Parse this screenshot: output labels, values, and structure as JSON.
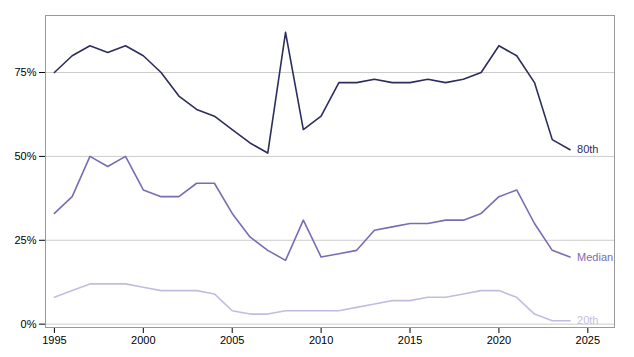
{
  "chart_data": {
    "type": "line",
    "x": [
      1995,
      1996,
      1997,
      1998,
      1999,
      2000,
      2001,
      2002,
      2003,
      2004,
      2005,
      2006,
      2007,
      2008,
      2009,
      2010,
      2011,
      2012,
      2013,
      2014,
      2015,
      2016,
      2017,
      2018,
      2019,
      2020,
      2021,
      2022,
      2023,
      2024
    ],
    "series": [
      {
        "name": "80th",
        "color": "#2d2d5e",
        "values": [
          0.75,
          0.8,
          0.83,
          0.81,
          0.83,
          0.8,
          0.75,
          0.68,
          0.64,
          0.62,
          0.58,
          0.54,
          0.51,
          0.87,
          0.58,
          0.62,
          0.72,
          0.72,
          0.73,
          0.72,
          0.72,
          0.73,
          0.72,
          0.73,
          0.75,
          0.83,
          0.8,
          0.72,
          0.55,
          0.52
        ]
      },
      {
        "name": "Median",
        "color": "#7b6bb5",
        "values": [
          0.33,
          0.38,
          0.5,
          0.47,
          0.5,
          0.4,
          0.38,
          0.38,
          0.42,
          0.42,
          0.33,
          0.26,
          0.22,
          0.19,
          0.31,
          0.2,
          0.21,
          0.22,
          0.28,
          0.29,
          0.3,
          0.3,
          0.31,
          0.31,
          0.33,
          0.38,
          0.4,
          0.3,
          0.22,
          0.2
        ]
      },
      {
        "name": "20th",
        "color": "#c4bce0",
        "values": [
          0.08,
          0.1,
          0.12,
          0.12,
          0.12,
          0.11,
          0.1,
          0.1,
          0.1,
          0.09,
          0.04,
          0.03,
          0.03,
          0.04,
          0.04,
          0.04,
          0.04,
          0.05,
          0.06,
          0.07,
          0.07,
          0.08,
          0.08,
          0.09,
          0.1,
          0.1,
          0.08,
          0.03,
          0.01,
          0.01
        ]
      }
    ],
    "xlim": [
      1994.5,
      2026.5
    ],
    "xticks": [
      1995,
      2000,
      2005,
      2010,
      2015,
      2020,
      2025
    ],
    "ylim": [
      -0.01,
      0.92
    ],
    "yticks": [
      {
        "value": 0.0,
        "label": "0%"
      },
      {
        "value": 0.25,
        "label": "25%"
      },
      {
        "value": 0.5,
        "label": "50%"
      },
      {
        "value": 0.75,
        "label": "75%"
      }
    ],
    "grid": "y"
  }
}
